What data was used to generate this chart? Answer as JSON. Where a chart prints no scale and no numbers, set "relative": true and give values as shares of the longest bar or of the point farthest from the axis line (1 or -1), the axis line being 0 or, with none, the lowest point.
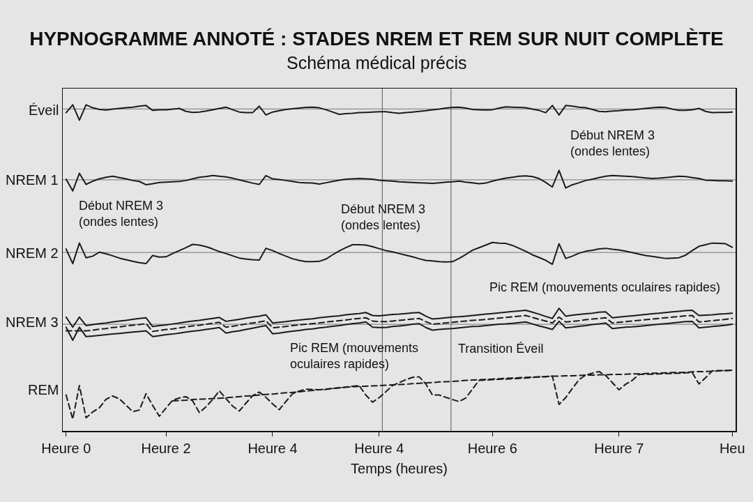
{
  "chart_data": {
    "type": "line",
    "title": "HYPNOGRAMME ANNOTÉ : STADES NREM ET REM SUR NUIT COMPLÈTE",
    "subtitle": "Schéma médical précis",
    "xlabel": "Temps (heures)",
    "relative": true,
    "categories": [
      "Heure 0",
      null,
      null,
      null,
      null,
      null,
      null,
      null,
      null,
      null,
      null,
      null,
      null,
      null,
      null,
      "Heure 2",
      null,
      null,
      null,
      null,
      null,
      null,
      null,
      null,
      null,
      null,
      null,
      null,
      null,
      null,
      null,
      "Heure 4",
      null,
      null,
      null,
      null,
      null,
      null,
      null,
      null,
      null,
      null,
      null,
      null,
      null,
      null,
      null,
      "Heure 4",
      null,
      null,
      null,
      null,
      null,
      null,
      null,
      null,
      null,
      null,
      null,
      null,
      null,
      null,
      null,
      null,
      "Heure 6",
      null,
      null,
      null,
      null,
      null,
      null,
      null,
      null,
      null,
      null,
      null,
      null,
      null,
      null,
      null,
      null,
      null,
      null,
      "Heure 7",
      null,
      null,
      null,
      null,
      null,
      null,
      null,
      null,
      null,
      null,
      null,
      null,
      null,
      null,
      null,
      null,
      "Heu"
    ],
    "legend": false,
    "marker": "none",
    "line_style": "solid",
    "ref_lines": [
      {
        "axis": "y",
        "value": 0.987,
        "color": "#8a8a8a"
      },
      {
        "axis": "y",
        "value": 0.77,
        "color": "#8a8a8a"
      },
      {
        "axis": "y",
        "value": 0.547,
        "color": "#8a8a8a"
      },
      {
        "axis": "y",
        "value": 0.327,
        "color": "#8a8a8a"
      }
    ],
    "annotations": [
      "Début NREM 3\n(ondes lentes)",
      "Début NREM 3\n(ondes lentes)",
      "Début NREM 3\n(ondes lentes)",
      "Pic REM (mouvements oculaires rapides)",
      "Pic REM (mouvements\noculaires rapides)",
      "Transition Éveil"
    ],
    "series": [
      {
        "name": "Éveil",
        "color": "#1a1a1a",
        "values": [
          0.976,
          1.0,
          0.953,
          1.0,
          0.991,
          0.986,
          0.984,
          0.987,
          0.989,
          0.991,
          0.993,
          0.996,
          0.998,
          0.983,
          0.985,
          0.985,
          0.987,
          0.989,
          0.98,
          0.977,
          0.978,
          0.981,
          0.985,
          0.989,
          0.993,
          0.985,
          0.978,
          0.976,
          0.976,
          0.996,
          0.969,
          0.978,
          0.982,
          0.986,
          0.988,
          0.99,
          0.992,
          0.993,
          0.991,
          0.985,
          0.978,
          0.971,
          0.973,
          0.974,
          0.976,
          0.977,
          0.978,
          0.979,
          0.979,
          0.976,
          0.974,
          0.976,
          0.978,
          0.98,
          0.982,
          0.985,
          0.987,
          0.99,
          0.992,
          0.993,
          0.99,
          0.986,
          0.985,
          0.984,
          0.985,
          0.99,
          0.994,
          0.993,
          0.992,
          0.991,
          0.987,
          0.983,
          0.976,
          0.998,
          0.969,
          0.998,
          0.996,
          0.993,
          0.991,
          0.986,
          0.98,
          0.979,
          0.981,
          0.982,
          0.984,
          0.985,
          0.987,
          0.989,
          0.991,
          0.993,
          0.992,
          0.987,
          0.983,
          0.983,
          0.985,
          0.989,
          0.98,
          0.976,
          0.977,
          0.977,
          0.978
        ]
      },
      {
        "name": "NREM 1",
        "color": "#1a1a1a",
        "values": [
          0.772,
          0.736,
          0.79,
          0.756,
          0.766,
          0.773,
          0.778,
          0.781,
          0.777,
          0.773,
          0.768,
          0.765,
          0.755,
          0.758,
          0.762,
          0.763,
          0.764,
          0.765,
          0.768,
          0.773,
          0.778,
          0.78,
          0.783,
          0.781,
          0.779,
          0.775,
          0.77,
          0.765,
          0.76,
          0.756,
          0.783,
          0.773,
          0.771,
          0.768,
          0.765,
          0.762,
          0.761,
          0.76,
          0.757,
          0.761,
          0.765,
          0.769,
          0.772,
          0.773,
          0.774,
          0.773,
          0.772,
          0.769,
          0.767,
          0.766,
          0.764,
          0.763,
          0.762,
          0.761,
          0.76,
          0.759,
          0.761,
          0.763,
          0.764,
          0.766,
          0.763,
          0.761,
          0.758,
          0.76,
          0.766,
          0.771,
          0.775,
          0.778,
          0.781,
          0.782,
          0.78,
          0.774,
          0.762,
          0.748,
          0.799,
          0.745,
          0.755,
          0.761,
          0.768,
          0.772,
          0.777,
          0.781,
          0.783,
          0.782,
          0.781,
          0.78,
          0.778,
          0.776,
          0.774,
          0.775,
          0.777,
          0.779,
          0.781,
          0.78,
          0.777,
          0.774,
          0.769,
          0.768,
          0.767,
          0.767,
          0.766
        ]
      },
      {
        "name": "NREM 2",
        "color": "#1a1a1a",
        "values": [
          0.558,
          0.513,
          0.576,
          0.531,
          0.536,
          0.548,
          0.543,
          0.537,
          0.53,
          0.525,
          0.52,
          0.516,
          0.513,
          0.538,
          0.533,
          0.534,
          0.544,
          0.553,
          0.562,
          0.572,
          0.57,
          0.565,
          0.558,
          0.55,
          0.544,
          0.537,
          0.53,
          0.527,
          0.525,
          0.524,
          0.56,
          0.553,
          0.544,
          0.536,
          0.528,
          0.523,
          0.519,
          0.519,
          0.52,
          0.527,
          0.54,
          0.552,
          0.562,
          0.571,
          0.571,
          0.57,
          0.565,
          0.559,
          0.553,
          0.549,
          0.544,
          0.539,
          0.534,
          0.528,
          0.523,
          0.521,
          0.519,
          0.518,
          0.519,
          0.529,
          0.541,
          0.554,
          0.562,
          0.57,
          0.578,
          0.576,
          0.575,
          0.569,
          0.56,
          0.551,
          0.54,
          0.532,
          0.523,
          0.511,
          0.574,
          0.529,
          0.536,
          0.545,
          0.551,
          0.554,
          0.558,
          0.56,
          0.557,
          0.555,
          0.551,
          0.547,
          0.542,
          0.538,
          0.535,
          0.532,
          0.529,
          0.53,
          0.531,
          0.539,
          0.553,
          0.566,
          0.571,
          0.576,
          0.575,
          0.574,
          0.563
        ]
      },
      {
        "color": "#1a1a1a",
        "values": [
          0.349,
          0.318,
          0.349,
          0.323,
          0.326,
          0.329,
          0.331,
          0.334,
          0.337,
          0.339,
          0.342,
          0.345,
          0.347,
          0.32,
          0.323,
          0.325,
          0.328,
          0.331,
          0.334,
          0.337,
          0.339,
          0.342,
          0.345,
          0.348,
          0.336,
          0.339,
          0.342,
          0.346,
          0.349,
          0.352,
          0.356,
          0.331,
          0.333,
          0.335,
          0.338,
          0.34,
          0.342,
          0.344,
          0.347,
          0.349,
          0.351,
          0.353,
          0.356,
          0.358,
          0.36,
          0.363,
          0.354,
          0.353,
          0.355,
          0.357,
          0.358,
          0.36,
          0.362,
          0.363,
          0.352,
          0.343,
          0.345,
          0.347,
          0.349,
          0.35,
          0.352,
          0.354,
          0.356,
          0.358,
          0.36,
          0.362,
          0.364,
          0.366,
          0.368,
          0.37,
          0.364,
          0.358,
          0.351,
          0.345,
          0.376,
          0.352,
          0.355,
          0.357,
          0.359,
          0.361,
          0.364,
          0.365,
          0.347,
          0.349,
          0.351,
          0.353,
          0.355,
          0.357,
          0.359,
          0.361,
          0.363,
          0.365,
          0.367,
          0.369,
          0.37,
          0.354,
          0.355,
          0.356,
          0.358,
          0.359,
          0.361
        ]
      },
      {
        "name": "NREM 3",
        "color": "#1a1a1a",
        "line_style": "dashed",
        "values": [
          0.307,
          0.307,
          0.307,
          0.307,
          0.309,
          0.312,
          0.314,
          0.317,
          0.319,
          0.322,
          0.324,
          0.326,
          0.329,
          0.305,
          0.308,
          0.311,
          0.313,
          0.316,
          0.319,
          0.322,
          0.324,
          0.327,
          0.33,
          0.333,
          0.318,
          0.321,
          0.324,
          0.328,
          0.331,
          0.334,
          0.338,
          0.316,
          0.318,
          0.32,
          0.323,
          0.325,
          0.327,
          0.329,
          0.331,
          0.334,
          0.336,
          0.338,
          0.34,
          0.343,
          0.345,
          0.347,
          0.337,
          0.335,
          0.335,
          0.337,
          0.339,
          0.341,
          0.343,
          0.345,
          0.335,
          0.327,
          0.329,
          0.331,
          0.333,
          0.335,
          0.337,
          0.339,
          0.34,
          0.342,
          0.344,
          0.346,
          0.348,
          0.35,
          0.352,
          0.354,
          0.348,
          0.342,
          0.337,
          0.331,
          0.349,
          0.334,
          0.336,
          0.338,
          0.341,
          0.343,
          0.345,
          0.347,
          0.331,
          0.333,
          0.335,
          0.337,
          0.339,
          0.341,
          0.343,
          0.345,
          0.347,
          0.349,
          0.351,
          0.353,
          0.354,
          0.334,
          0.336,
          0.338,
          0.34,
          0.342,
          0.345
        ]
      },
      {
        "color": "#1a1a1a",
        "values": [
          0.318,
          0.278,
          0.318,
          0.289,
          0.291,
          0.293,
          0.295,
          0.297,
          0.299,
          0.301,
          0.303,
          0.305,
          0.307,
          0.289,
          0.292,
          0.295,
          0.297,
          0.3,
          0.303,
          0.306,
          0.308,
          0.311,
          0.314,
          0.317,
          0.3,
          0.304,
          0.307,
          0.311,
          0.315,
          0.319,
          0.323,
          0.298,
          0.3,
          0.303,
          0.306,
          0.308,
          0.311,
          0.313,
          0.316,
          0.318,
          0.321,
          0.323,
          0.326,
          0.329,
          0.331,
          0.334,
          0.318,
          0.317,
          0.317,
          0.32,
          0.322,
          0.324,
          0.327,
          0.329,
          0.317,
          0.309,
          0.311,
          0.313,
          0.314,
          0.316,
          0.318,
          0.32,
          0.321,
          0.323,
          0.325,
          0.327,
          0.328,
          0.33,
          0.332,
          0.334,
          0.328,
          0.322,
          0.317,
          0.311,
          0.336,
          0.316,
          0.318,
          0.321,
          0.323,
          0.326,
          0.328,
          0.331,
          0.314,
          0.316,
          0.318,
          0.319,
          0.321,
          0.323,
          0.325,
          0.327,
          0.329,
          0.331,
          0.333,
          0.335,
          0.336,
          0.316,
          0.318,
          0.32,
          0.322,
          0.324,
          0.327
        ]
      },
      {
        "name": "REM",
        "color": "#1a1a1a",
        "line_style": "dashed",
        "values": [
          0.11,
          0.036,
          0.139,
          0.04,
          0.058,
          0.071,
          0.097,
          0.107,
          0.098,
          0.079,
          0.059,
          0.064,
          0.114,
          0.078,
          0.045,
          0.07,
          0.094,
          0.101,
          0.105,
          0.092,
          0.056,
          0.074,
          0.096,
          0.123,
          0.099,
          0.076,
          0.061,
          0.085,
          0.108,
          0.119,
          0.103,
          0.083,
          0.065,
          0.09,
          0.114,
          0.122,
          0.128,
          0.127,
          0.126,
          0.127,
          0.13,
          0.132,
          0.134,
          0.137,
          0.139,
          0.11,
          0.088,
          0.102,
          0.12,
          0.139,
          0.148,
          0.157,
          0.164,
          0.166,
          0.144,
          0.11,
          0.11,
          0.103,
          0.096,
          0.09,
          0.101,
          0.128,
          0.155,
          0.156,
          0.157,
          0.158,
          0.159,
          0.16,
          0.161,
          0.162,
          0.164,
          0.165,
          0.166,
          0.168,
          0.081,
          0.102,
          0.13,
          0.157,
          0.171,
          0.177,
          0.182,
          0.17,
          0.148,
          0.126,
          0.143,
          0.155,
          0.173,
          0.174,
          0.174,
          0.175,
          0.176,
          0.176,
          0.177,
          0.178,
          0.179,
          0.144,
          0.163,
          0.184,
          0.185,
          0.185,
          0.186
        ]
      },
      {
        "color": "#1a1a1a",
        "line_style": "dashed",
        "values": [
          null,
          null,
          null,
          null,
          null,
          null,
          null,
          null,
          null,
          null,
          null,
          null,
          null,
          null,
          null,
          null,
          0.092,
          0.093,
          0.094,
          0.096,
          0.097,
          0.098,
          0.099,
          0.1,
          0.102,
          0.103,
          0.105,
          0.107,
          0.108,
          0.11,
          0.112,
          0.113,
          0.115,
          0.117,
          0.118,
          0.12,
          0.122,
          0.124,
          0.126,
          0.128,
          0.13,
          0.132,
          0.134,
          0.135,
          0.137,
          0.137,
          0.138,
          0.139,
          0.14,
          0.141,
          0.142,
          0.143,
          0.145,
          0.146,
          0.147,
          0.148,
          0.15,
          0.151,
          0.152,
          0.153,
          0.155,
          0.156,
          0.157,
          0.158,
          0.159,
          0.16,
          0.161,
          0.162,
          0.163,
          0.164,
          0.165,
          0.166,
          0.167,
          0.168,
          0.168,
          0.169,
          0.169,
          0.17,
          0.171,
          0.171,
          0.172,
          0.172,
          0.173,
          0.173,
          0.174,
          0.175,
          0.175,
          0.176,
          0.177,
          0.177,
          0.178,
          0.179,
          0.179,
          0.18,
          0.181,
          0.182,
          0.182,
          0.183,
          0.184,
          0.185,
          0.186
        ]
      }
    ]
  }
}
